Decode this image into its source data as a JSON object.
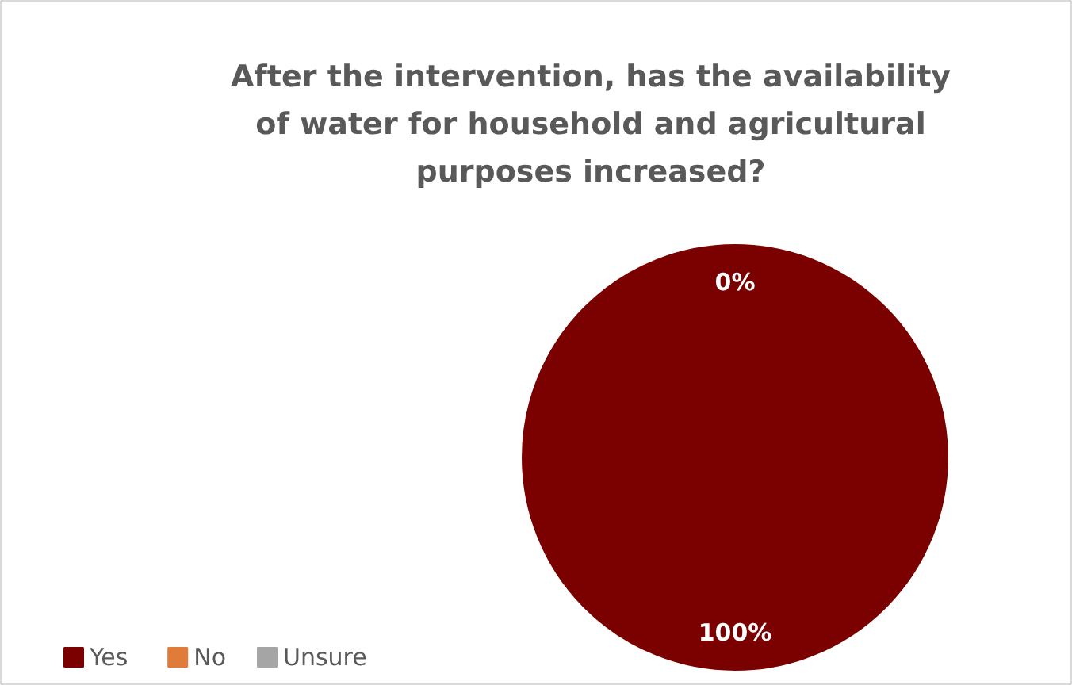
{
  "chart_data": {
    "type": "pie",
    "title": "After the intervention, has the availability of water for household and agricultural purposes increased?",
    "categories": [
      "Yes",
      "No",
      "Unsure"
    ],
    "values": [
      100,
      0,
      0
    ],
    "colors": [
      "#7b0000",
      "#e07b39",
      "#a5a5a5"
    ],
    "value_labels": [
      "100%",
      "0%",
      null
    ],
    "legend": "bottom left"
  }
}
